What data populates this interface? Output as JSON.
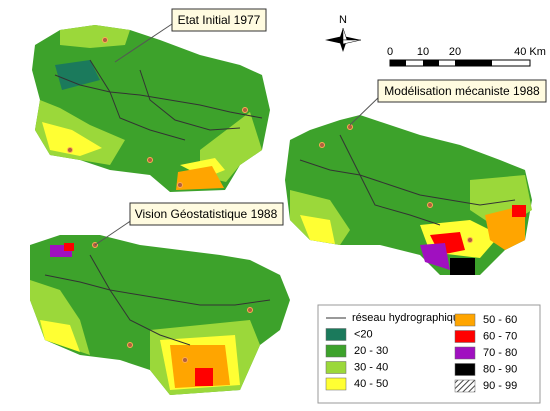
{
  "map_labels": [
    "Etat Initial 1977",
    "Modélisation mécaniste 1988",
    "Vision Géostatistique 1988"
  ],
  "north": "N",
  "scale_labels": [
    "0",
    "10",
    "20",
    "40 Km"
  ],
  "legend": {
    "line_label": "réseau hydrographique",
    "classes": [
      {
        "label": "<20",
        "color": "#1b7a5c"
      },
      {
        "label": "20 - 30",
        "color": "#3da22b"
      },
      {
        "label": "30 - 40",
        "color": "#9bd83a"
      },
      {
        "label": "40 - 50",
        "color": "#ffff33"
      },
      {
        "label": "50 - 60",
        "color": "#ffa500"
      },
      {
        "label": "60 - 70",
        "color": "#ff0000"
      },
      {
        "label": "70 - 80",
        "color": "#a010c0"
      },
      {
        "label": "80 - 90",
        "color": "#000000"
      },
      {
        "label": "90 - 99",
        "color": "#888888",
        "hatch": true
      }
    ]
  }
}
